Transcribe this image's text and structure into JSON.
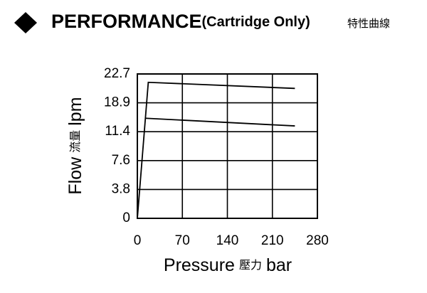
{
  "chart_data": {
    "type": "line",
    "title": "PERFORMANCE",
    "title_note": "(Cartridge Only)",
    "title_cn": "特性曲線",
    "xlabel": [
      "Pressure",
      "壓力",
      "bar"
    ],
    "ylabel": [
      "Flow",
      "流量",
      "lpm"
    ],
    "xlim": [
      0,
      280
    ],
    "xticks": [
      0,
      70,
      140,
      210,
      280
    ],
    "ylim": [
      0,
      22.7
    ],
    "yticks": [
      0,
      3.8,
      7.6,
      11.4,
      18.9,
      22.7
    ],
    "grid": true,
    "series": [
      {
        "color": "#000000",
        "x": [
          0,
          17,
          245
        ],
        "values": [
          0,
          21.6,
          20.8
        ]
      },
      {
        "color": "#000000",
        "x": [
          12,
          245
        ],
        "values": [
          14.9,
          12.9
        ]
      }
    ]
  }
}
